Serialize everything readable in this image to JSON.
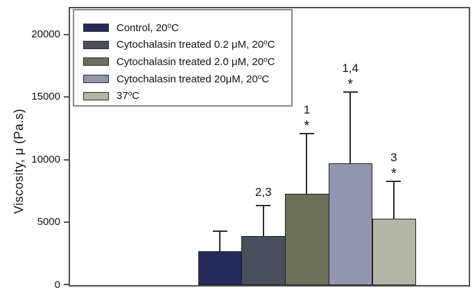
{
  "figure": {
    "background": "#ffffff",
    "frame_color": "#4f4f4f",
    "text_color": "#111111",
    "legend_border_color": "#878787"
  },
  "chart_data": {
    "type": "bar",
    "title": "",
    "xlabel": "",
    "ylabel": "Viscosity, μ (Pa.s)",
    "ylim": [
      0,
      22180
    ],
    "yticks": [
      0,
      5000,
      10000,
      15000,
      20000
    ],
    "ytick_labels": [
      "0",
      "5000",
      "10000",
      "15000",
      "20000"
    ],
    "grid": false,
    "legend_position": "upper-left",
    "error_bars": "plus-only",
    "series": [
      {
        "label": "Control, 20°C",
        "value": 2700,
        "error_plus": 1650,
        "color": "#262a5a",
        "annotation": "",
        "significance": ""
      },
      {
        "label": "Cytochalasin treated 0.2 μM, 20°C",
        "value": 3900,
        "error_plus": 2500,
        "color": "#4b4e5c",
        "annotation": "2,3",
        "significance": ""
      },
      {
        "label": "Cytochalasin treated 2.0 μM, 20°C",
        "value": 7300,
        "error_plus": 4850,
        "color": "#6d7058",
        "annotation": "1",
        "significance": "*"
      },
      {
        "label": "Cytochalasin treated 20μM, 20°C",
        "value": 9700,
        "error_plus": 5750,
        "color": "#9394af",
        "annotation": "1,4",
        "significance": "*"
      },
      {
        "label": "37°C",
        "value": 5300,
        "error_plus": 3050,
        "color": "#b2b4a6",
        "annotation": "3",
        "significance": "*"
      }
    ]
  }
}
